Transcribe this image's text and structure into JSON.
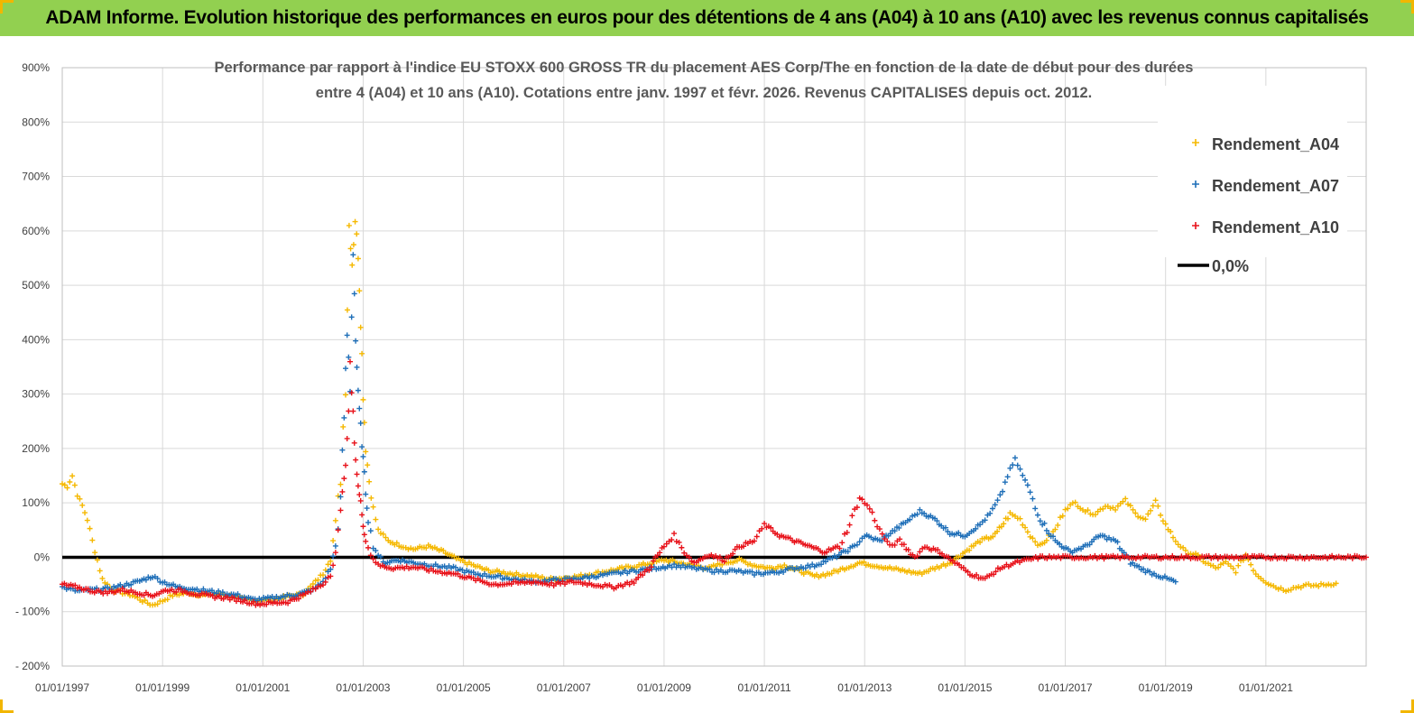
{
  "header": {
    "title": "ADAM Informe. Evolution historique des performances en euros pour des détentions de 4 ans (A04) à 10 ans (A10) avec les revenus connus capitalisés"
  },
  "chart_data": {
    "type": "scatter",
    "title_lines": [
      "Performance par rapport à l'indice EU STOXX 600 GROSS TR  du placement AES Corp/The en fonction de la date de début pour des durées",
      "entre 4 (A04) et 10 ans (A10). Cotations entre janv. 1997 et févr. 2026. Revenus CAPITALISES depuis oct. 2012."
    ],
    "xlabel": "",
    "ylabel": "",
    "xlim": [
      1997.0,
      2023.0
    ],
    "ylim": [
      -200,
      900
    ],
    "x_tick_labels": [
      "01/01/1997",
      "01/01/1999",
      "01/01/2001",
      "01/01/2003",
      "01/01/2005",
      "01/01/2007",
      "01/01/2009",
      "01/01/2011",
      "01/01/2013",
      "01/01/2015",
      "01/01/2017",
      "01/01/2019",
      "01/01/2021"
    ],
    "x_tick_values": [
      1997,
      1999,
      2001,
      2003,
      2005,
      2007,
      2009,
      2011,
      2013,
      2015,
      2017,
      2019,
      2021
    ],
    "y_tick_labels": [
      "900%",
      "800%",
      "700%",
      "600%",
      "500%",
      "400%",
      "300%",
      "200%",
      "100%",
      "0%",
      "- 100%",
      "- 200%"
    ],
    "y_tick_values": [
      900,
      800,
      700,
      600,
      500,
      400,
      300,
      200,
      100,
      0,
      -100,
      -200
    ],
    "grid": true,
    "legend": "top-right",
    "colors": {
      "A04": "#f5b800",
      "A07": "#1f6fb8",
      "A10": "#e8121a",
      "zero": "#000000",
      "banner": "#92d050",
      "grid": "#d9d9d9"
    },
    "series": [
      {
        "name": "Rendement_A04",
        "color": "#f5b800",
        "marker": "+",
        "points": [
          [
            1997.0,
            135
          ],
          [
            1997.1,
            130
          ],
          [
            1997.2,
            150
          ],
          [
            1997.3,
            115
          ],
          [
            1997.4,
            95
          ],
          [
            1997.5,
            70
          ],
          [
            1997.6,
            30
          ],
          [
            1997.7,
            -5
          ],
          [
            1997.8,
            -40
          ],
          [
            1997.9,
            -50
          ],
          [
            1998.0,
            -60
          ],
          [
            1998.2,
            -65
          ],
          [
            1998.4,
            -70
          ],
          [
            1998.6,
            -80
          ],
          [
            1998.8,
            -88
          ],
          [
            1999.0,
            -80
          ],
          [
            1999.2,
            -70
          ],
          [
            1999.5,
            -65
          ],
          [
            1999.8,
            -70
          ],
          [
            2000.0,
            -68
          ],
          [
            2000.3,
            -70
          ],
          [
            2000.6,
            -78
          ],
          [
            2000.9,
            -80
          ],
          [
            2001.2,
            -78
          ],
          [
            2001.5,
            -72
          ],
          [
            2001.8,
            -68
          ],
          [
            2002.0,
            -50
          ],
          [
            2002.2,
            -30
          ],
          [
            2002.35,
            0
          ],
          [
            2002.45,
            60
          ],
          [
            2002.55,
            150
          ],
          [
            2002.65,
            330
          ],
          [
            2002.72,
            610
          ],
          [
            2002.78,
            540
          ],
          [
            2002.84,
            620
          ],
          [
            2002.9,
            560
          ],
          [
            2002.95,
            440
          ],
          [
            2003.0,
            300
          ],
          [
            2003.05,
            200
          ],
          [
            2003.12,
            140
          ],
          [
            2003.2,
            90
          ],
          [
            2003.3,
            50
          ],
          [
            2003.5,
            30
          ],
          [
            2003.8,
            20
          ],
          [
            2004.0,
            15
          ],
          [
            2004.3,
            20
          ],
          [
            2004.6,
            10
          ],
          [
            2004.9,
            -5
          ],
          [
            2005.2,
            -15
          ],
          [
            2005.5,
            -25
          ],
          [
            2005.8,
            -28
          ],
          [
            2006.1,
            -32
          ],
          [
            2006.4,
            -35
          ],
          [
            2006.7,
            -40
          ],
          [
            2007.0,
            -38
          ],
          [
            2007.3,
            -35
          ],
          [
            2007.6,
            -30
          ],
          [
            2007.9,
            -25
          ],
          [
            2008.2,
            -20
          ],
          [
            2008.5,
            -15
          ],
          [
            2008.8,
            -10
          ],
          [
            2009.0,
            -5
          ],
          [
            2009.3,
            -10
          ],
          [
            2009.6,
            -15
          ],
          [
            2009.9,
            -20
          ],
          [
            2010.2,
            -10
          ],
          [
            2010.5,
            -5
          ],
          [
            2010.8,
            -15
          ],
          [
            2011.1,
            -20
          ],
          [
            2011.4,
            -15
          ],
          [
            2011.7,
            -25
          ],
          [
            2012.0,
            -35
          ],
          [
            2012.3,
            -30
          ],
          [
            2012.6,
            -20
          ],
          [
            2012.9,
            -10
          ],
          [
            2013.2,
            -15
          ],
          [
            2013.5,
            -20
          ],
          [
            2013.8,
            -25
          ],
          [
            2014.1,
            -30
          ],
          [
            2014.4,
            -20
          ],
          [
            2014.7,
            -10
          ],
          [
            2015.0,
            10
          ],
          [
            2015.3,
            30
          ],
          [
            2015.6,
            40
          ],
          [
            2015.9,
            80
          ],
          [
            2016.1,
            70
          ],
          [
            2016.3,
            40
          ],
          [
            2016.5,
            20
          ],
          [
            2016.8,
            50
          ],
          [
            2017.0,
            90
          ],
          [
            2017.2,
            100
          ],
          [
            2017.4,
            85
          ],
          [
            2017.6,
            80
          ],
          [
            2017.8,
            95
          ],
          [
            2018.0,
            90
          ],
          [
            2018.2,
            105
          ],
          [
            2018.4,
            80
          ],
          [
            2018.6,
            70
          ],
          [
            2018.8,
            100
          ],
          [
            2019.0,
            60
          ],
          [
            2019.2,
            30
          ],
          [
            2019.4,
            10
          ],
          [
            2019.6,
            5
          ],
          [
            2019.8,
            -10
          ],
          [
            2020.0,
            -20
          ],
          [
            2020.2,
            -10
          ],
          [
            2020.4,
            -25
          ],
          [
            2020.6,
            5
          ],
          [
            2020.8,
            -30
          ],
          [
            2021.0,
            -45
          ],
          [
            2021.2,
            -55
          ],
          [
            2021.4,
            -60
          ],
          [
            2021.6,
            -55
          ],
          [
            2021.8,
            -52
          ],
          [
            2022.0,
            -52
          ],
          [
            2022.2,
            -50
          ],
          [
            2022.4,
            -48
          ]
        ]
      },
      {
        "name": "Rendement_A07",
        "color": "#1f6fb8",
        "marker": "+",
        "points": [
          [
            1997.0,
            -55
          ],
          [
            1997.3,
            -62
          ],
          [
            1997.6,
            -60
          ],
          [
            1997.9,
            -58
          ],
          [
            1998.2,
            -52
          ],
          [
            1998.5,
            -45
          ],
          [
            1998.8,
            -35
          ],
          [
            1999.0,
            -45
          ],
          [
            1999.3,
            -55
          ],
          [
            1999.6,
            -58
          ],
          [
            1999.9,
            -62
          ],
          [
            2000.2,
            -66
          ],
          [
            2000.5,
            -70
          ],
          [
            2000.8,
            -78
          ],
          [
            2001.1,
            -76
          ],
          [
            2001.4,
            -72
          ],
          [
            2001.7,
            -68
          ],
          [
            2002.0,
            -60
          ],
          [
            2002.2,
            -45
          ],
          [
            2002.35,
            -20
          ],
          [
            2002.45,
            20
          ],
          [
            2002.55,
            100
          ],
          [
            2002.62,
            260
          ],
          [
            2002.68,
            410
          ],
          [
            2002.74,
            320
          ],
          [
            2002.8,
            570
          ],
          [
            2002.85,
            400
          ],
          [
            2002.9,
            300
          ],
          [
            2002.95,
            240
          ],
          [
            2003.0,
            180
          ],
          [
            2003.05,
            120
          ],
          [
            2003.1,
            70
          ],
          [
            2003.2,
            20
          ],
          [
            2003.4,
            -10
          ],
          [
            2003.7,
            -5
          ],
          [
            2004.0,
            -10
          ],
          [
            2004.4,
            -15
          ],
          [
            2004.8,
            -20
          ],
          [
            2005.2,
            -30
          ],
          [
            2005.6,
            -35
          ],
          [
            2006.0,
            -40
          ],
          [
            2006.4,
            -45
          ],
          [
            2006.8,
            -42
          ],
          [
            2007.2,
            -40
          ],
          [
            2007.6,
            -35
          ],
          [
            2008.0,
            -30
          ],
          [
            2008.4,
            -25
          ],
          [
            2008.8,
            -20
          ],
          [
            2009.2,
            -15
          ],
          [
            2009.6,
            -20
          ],
          [
            2010.0,
            -25
          ],
          [
            2010.4,
            -25
          ],
          [
            2010.8,
            -30
          ],
          [
            2011.2,
            -28
          ],
          [
            2011.6,
            -20
          ],
          [
            2012.0,
            -15
          ],
          [
            2012.4,
            0
          ],
          [
            2012.8,
            20
          ],
          [
            2013.0,
            40
          ],
          [
            2013.3,
            30
          ],
          [
            2013.6,
            50
          ],
          [
            2013.9,
            70
          ],
          [
            2014.1,
            85
          ],
          [
            2014.4,
            70
          ],
          [
            2014.7,
            45
          ],
          [
            2015.0,
            40
          ],
          [
            2015.3,
            60
          ],
          [
            2015.5,
            80
          ],
          [
            2015.7,
            110
          ],
          [
            2015.85,
            150
          ],
          [
            2016.0,
            180
          ],
          [
            2016.1,
            160
          ],
          [
            2016.3,
            120
          ],
          [
            2016.5,
            70
          ],
          [
            2016.8,
            30
          ],
          [
            2017.1,
            10
          ],
          [
            2017.4,
            20
          ],
          [
            2017.7,
            40
          ],
          [
            2018.0,
            30
          ],
          [
            2018.3,
            -10
          ],
          [
            2018.6,
            -25
          ],
          [
            2018.9,
            -35
          ],
          [
            2019.2,
            -45
          ]
        ]
      },
      {
        "name": "Rendement_A10",
        "color": "#e8121a",
        "marker": "+",
        "points": [
          [
            1997.0,
            -50
          ],
          [
            1997.3,
            -55
          ],
          [
            1997.6,
            -62
          ],
          [
            1997.9,
            -65
          ],
          [
            1998.2,
            -60
          ],
          [
            1998.5,
            -65
          ],
          [
            1998.8,
            -70
          ],
          [
            1999.1,
            -60
          ],
          [
            1999.4,
            -62
          ],
          [
            1999.7,
            -68
          ],
          [
            2000.0,
            -72
          ],
          [
            2000.3,
            -75
          ],
          [
            2000.6,
            -80
          ],
          [
            2000.9,
            -86
          ],
          [
            2001.2,
            -84
          ],
          [
            2001.5,
            -82
          ],
          [
            2001.8,
            -70
          ],
          [
            2002.0,
            -60
          ],
          [
            2002.2,
            -50
          ],
          [
            2002.35,
            -30
          ],
          [
            2002.45,
            10
          ],
          [
            2002.55,
            80
          ],
          [
            2002.62,
            150
          ],
          [
            2002.68,
            200
          ],
          [
            2002.74,
            350
          ],
          [
            2002.8,
            260
          ],
          [
            2002.85,
            180
          ],
          [
            2002.9,
            130
          ],
          [
            2002.95,
            100
          ],
          [
            2003.0,
            60
          ],
          [
            2003.05,
            30
          ],
          [
            2003.15,
            5
          ],
          [
            2003.3,
            -15
          ],
          [
            2003.6,
            -20
          ],
          [
            2004.0,
            -18
          ],
          [
            2004.4,
            -25
          ],
          [
            2004.8,
            -30
          ],
          [
            2005.2,
            -40
          ],
          [
            2005.6,
            -50
          ],
          [
            2006.0,
            -48
          ],
          [
            2006.4,
            -45
          ],
          [
            2006.8,
            -50
          ],
          [
            2007.2,
            -45
          ],
          [
            2007.6,
            -50
          ],
          [
            2008.0,
            -55
          ],
          [
            2008.4,
            -45
          ],
          [
            2008.7,
            -20
          ],
          [
            2009.0,
            20
          ],
          [
            2009.2,
            40
          ],
          [
            2009.4,
            10
          ],
          [
            2009.6,
            -10
          ],
          [
            2009.9,
            5
          ],
          [
            2010.2,
            -5
          ],
          [
            2010.5,
            20
          ],
          [
            2010.8,
            30
          ],
          [
            2011.0,
            60
          ],
          [
            2011.3,
            40
          ],
          [
            2011.6,
            30
          ],
          [
            2011.9,
            20
          ],
          [
            2012.2,
            10
          ],
          [
            2012.5,
            20
          ],
          [
            2012.7,
            60
          ],
          [
            2012.9,
            110
          ],
          [
            2013.1,
            90
          ],
          [
            2013.3,
            50
          ],
          [
            2013.5,
            20
          ],
          [
            2013.7,
            30
          ],
          [
            2014.0,
            0
          ],
          [
            2014.2,
            20
          ],
          [
            2014.5,
            10
          ],
          [
            2014.8,
            -10
          ],
          [
            2015.1,
            -30
          ],
          [
            2015.4,
            -40
          ],
          [
            2015.7,
            -20
          ],
          [
            2016.0,
            -10
          ],
          [
            2016.5,
            0
          ],
          [
            2017.0,
            0
          ],
          [
            2018.0,
            0
          ],
          [
            2019.0,
            0
          ],
          [
            2020.0,
            0
          ],
          [
            2021.0,
            0
          ],
          [
            2022.0,
            0
          ],
          [
            2023.0,
            0
          ]
        ]
      }
    ],
    "reference_line": {
      "name": "0,0%",
      "value": 0,
      "color": "#000000"
    }
  }
}
